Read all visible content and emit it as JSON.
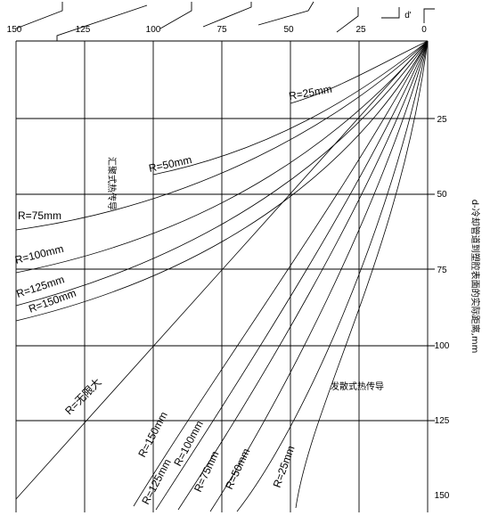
{
  "top_axis": {
    "ticks": [
      "150",
      "125",
      "100",
      "75",
      "50",
      "25",
      "0"
    ],
    "marker_label": "d'"
  },
  "right_axis": {
    "ticks": [
      "25",
      "50",
      "75",
      "100",
      "125",
      "150"
    ],
    "title": "d-冷却管道到塑腔表面的实际距离,mm"
  },
  "region_labels": {
    "converging": "汇聚式热传导",
    "diverging": "发散式热传导"
  },
  "upper_curves": [
    {
      "label": "R=25mm"
    },
    {
      "label": "R=50mm"
    },
    {
      "label": "R=75mm"
    },
    {
      "label": "R=100mm"
    },
    {
      "label": "R=125mm"
    },
    {
      "label": "R=150mm"
    }
  ],
  "infinity_label": "R=无限大",
  "lower_curves": [
    {
      "label": "R=150mm"
    },
    {
      "label": "R=125mm"
    },
    {
      "label": "R=100mm"
    },
    {
      "label": "R=75mm"
    },
    {
      "label": "R=50mm"
    },
    {
      "label": "R=25mm"
    }
  ]
}
